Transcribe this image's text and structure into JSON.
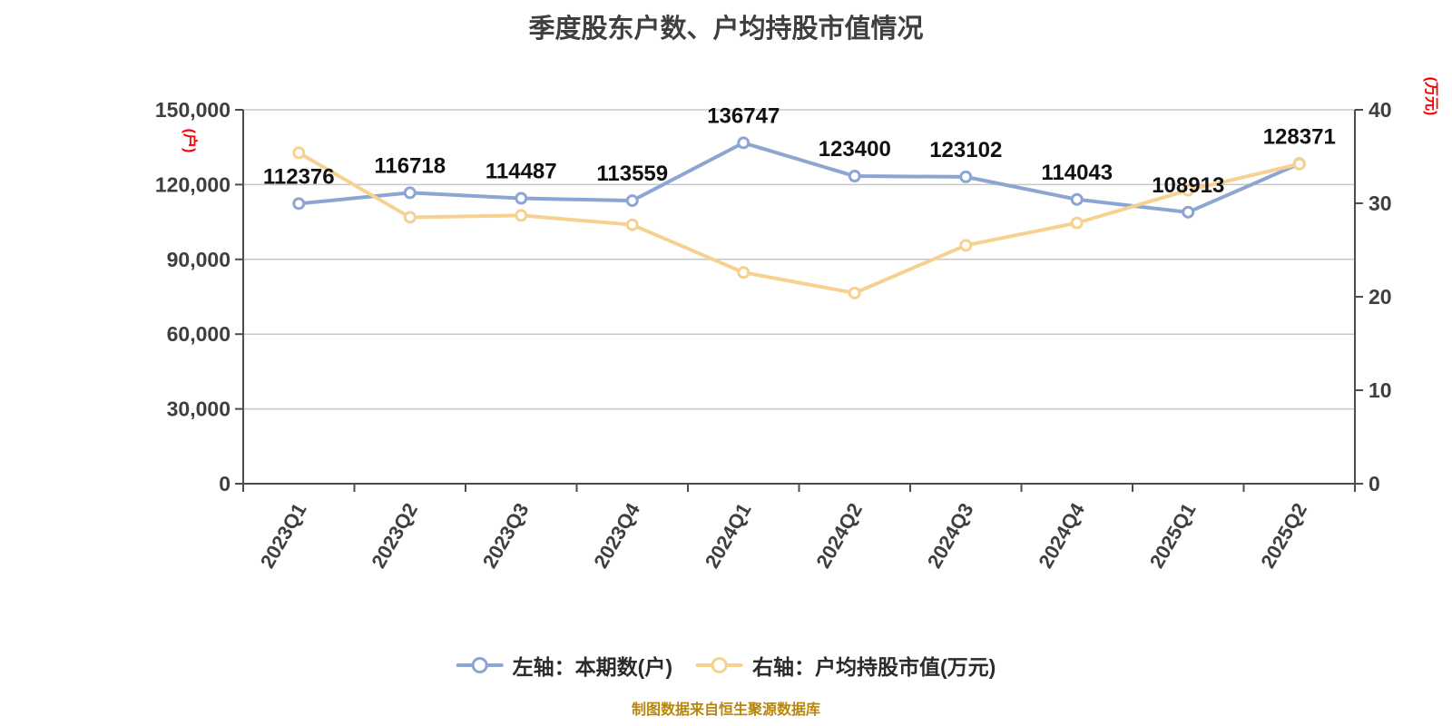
{
  "chart": {
    "title": "季度股东户数、户均持股市值情况",
    "caption": "制图数据来自恒生聚源数据库",
    "legend": [
      {
        "label": "左轴：本期数(户)"
      },
      {
        "label": "右轴：户均持股市值(万元)"
      }
    ]
  },
  "chart_data": {
    "type": "line",
    "title": "季度股东户数、户均持股市值情况",
    "categories": [
      "2023Q1",
      "2023Q2",
      "2023Q3",
      "2023Q4",
      "2024Q1",
      "2024Q2",
      "2024Q3",
      "2024Q4",
      "2025Q1",
      "2025Q2"
    ],
    "series": [
      {
        "name": "左轴：本期数(户)",
        "axis": "left",
        "color": "#8ca5d2",
        "marker": "circle",
        "show_labels": true,
        "values": [
          112376,
          116718,
          114487,
          113559,
          136747,
          123400,
          123102,
          114043,
          108913,
          128371
        ]
      },
      {
        "name": "右轴：户均持股市值(万元)",
        "axis": "right",
        "color": "#f6d190",
        "marker": "circle",
        "show_labels": false,
        "values": [
          35.4,
          28.5,
          28.7,
          27.7,
          22.6,
          20.4,
          25.5,
          27.9,
          31.4,
          34.2
        ]
      }
    ],
    "left_axis": {
      "unit": "(户)",
      "unit_color": "#ff0000",
      "min": 0,
      "max": 150000,
      "tick_values": [
        150000,
        120000,
        90000,
        60000,
        30000,
        0
      ],
      "tick_labels": [
        "150,000",
        "120,000",
        "90,000",
        "60,000",
        "30,000",
        "0"
      ]
    },
    "right_axis": {
      "unit": "(万元)",
      "unit_color": "#ff0000",
      "min": 0,
      "max": 40,
      "tick_values": [
        40,
        30,
        20,
        10,
        0
      ],
      "tick_labels": [
        "40",
        "30",
        "20",
        "10",
        "0"
      ]
    },
    "grid": true,
    "legend_position": "bottom",
    "caption": "制图数据来自恒生聚源数据库",
    "style": {
      "background": "#ffffff",
      "grid_color": "#c8c8c8",
      "axis_color": "#4d4d4d",
      "tick_text_color": "#3f3f3f",
      "data_label_color": "#111111"
    }
  }
}
